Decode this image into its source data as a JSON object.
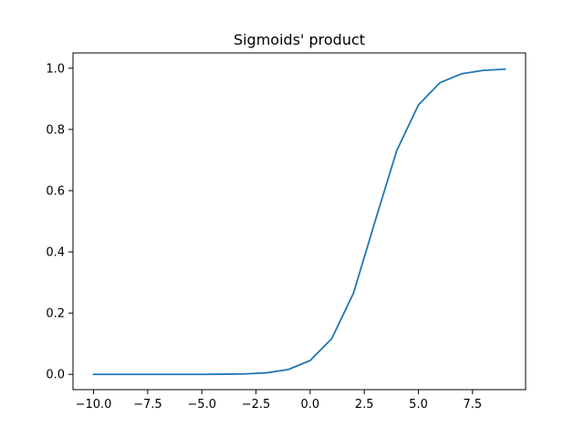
{
  "chart_data": {
    "type": "line",
    "title": "Sigmoids' product",
    "xlabel": "",
    "ylabel": "",
    "xlim": [
      -10.95,
      9.95
    ],
    "ylim": [
      -0.05,
      1.05
    ],
    "x_ticks": [
      -10.0,
      -7.5,
      -5.0,
      -2.5,
      0.0,
      2.5,
      5.0,
      7.5
    ],
    "x_tick_labels": [
      "−10.0",
      "−7.5",
      "−5.0",
      "−2.5",
      "0.0",
      "2.5",
      "5.0",
      "7.5"
    ],
    "y_ticks": [
      0.0,
      0.2,
      0.4,
      0.6,
      0.8,
      1.0
    ],
    "y_tick_labels": [
      "0.0",
      "0.2",
      "0.4",
      "0.6",
      "0.8",
      "1.0"
    ],
    "grid": false,
    "series": [
      {
        "color": "#1f77b4",
        "x": [
          -10,
          -9,
          -8,
          -7,
          -6,
          -5,
          -4,
          -3,
          -2,
          -1,
          0,
          1,
          2,
          3,
          4,
          5,
          6,
          7,
          8,
          9
        ],
        "y": [
          0.0,
          0.0,
          0.0,
          0.0,
          0.0,
          0.0,
          0.0005,
          0.0015,
          0.005,
          0.016,
          0.045,
          0.117,
          0.265,
          0.5,
          0.731,
          0.88,
          0.953,
          0.982,
          0.993,
          0.997
        ]
      }
    ]
  }
}
